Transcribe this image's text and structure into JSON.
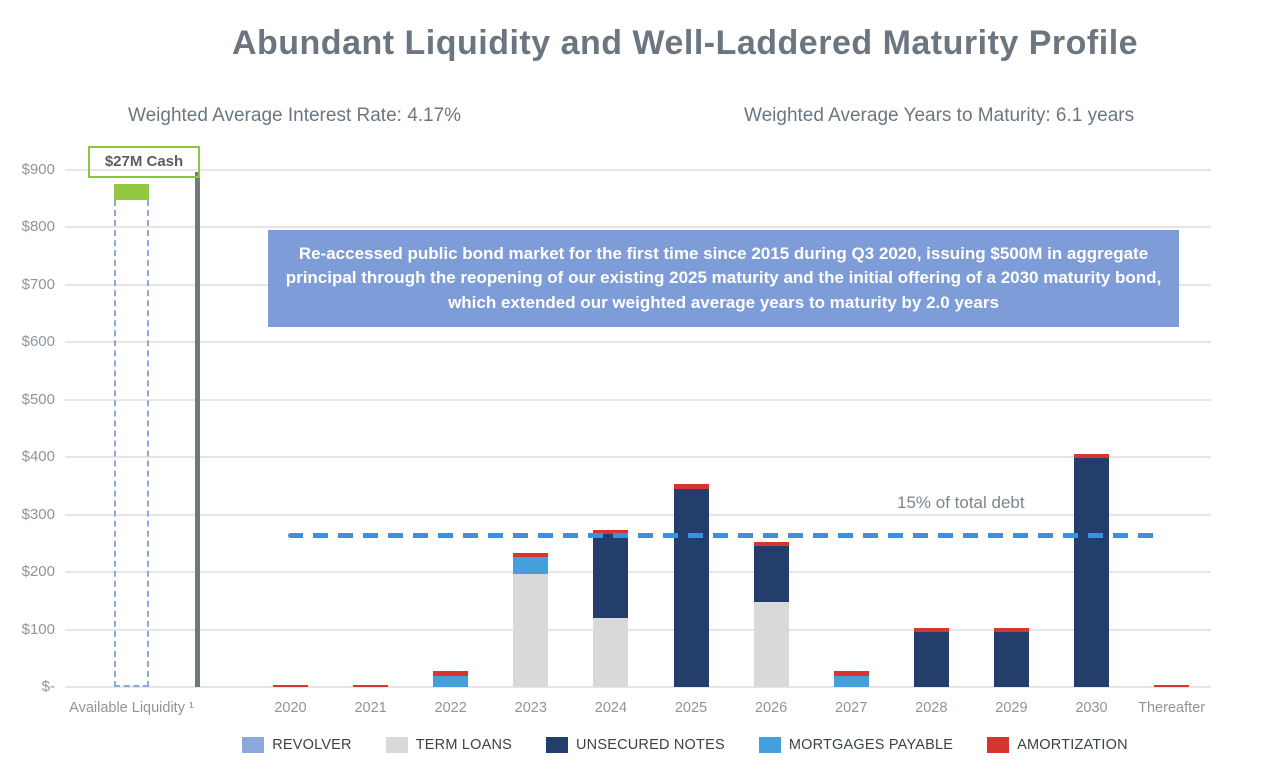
{
  "title": "Abundant Liquidity and Well-Laddered Maturity Profile",
  "stats": {
    "left": "Weighted Average Interest Rate: 4.17%",
    "right": "Weighted Average Years to Maturity: 6.1 years"
  },
  "annotations": {
    "cash_callout": "$27M Cash",
    "bond_note": "Re-accessed public bond market for the first time since 2015 during Q3 2020, issuing $500M in aggregate principal through the reopening of our existing 2025 maturity and the initial offering of a 2030 maturity bond, which extended our weighted average years to maturity by 2.0 years"
  },
  "chart_data": {
    "type": "bar",
    "stacked": true,
    "title": "Debt maturity ladder with available liquidity ($M)",
    "xlabel": "",
    "ylabel": "$M",
    "ylim": [
      0,
      900
    ],
    "ytick_interval": 100,
    "ytick_labels": [
      "$-",
      "$100",
      "$200",
      "$300",
      "$400",
      "$500",
      "$600",
      "$700",
      "$800",
      "$900"
    ],
    "grid": true,
    "legend_position": "bottom",
    "categories": [
      "Available Liquidity ¹",
      "2020",
      "2021",
      "2022",
      "2023",
      "2024",
      "2025",
      "2026",
      "2027",
      "2028",
      "2029",
      "2030",
      "Thereafter"
    ],
    "series": [
      {
        "name": "REVOLVER",
        "color": "#8da9dc",
        "style": "dashed-outline",
        "in_legend": true,
        "values": [
          848,
          0,
          0,
          0,
          0,
          0,
          0,
          0,
          0,
          0,
          0,
          0,
          0
        ]
      },
      {
        "name": "TERM LOANS",
        "color": "#d9d9d9",
        "in_legend": true,
        "values": [
          0,
          0,
          0,
          0,
          197,
          120,
          0,
          148,
          0,
          0,
          0,
          0,
          0
        ]
      },
      {
        "name": "UNSECURED NOTES",
        "color": "#233e6a",
        "in_legend": true,
        "values": [
          0,
          0,
          0,
          0,
          0,
          147,
          345,
          97,
          0,
          96,
          96,
          398,
          0
        ]
      },
      {
        "name": "MORTGAGES PAYABLE",
        "color": "#449fdc",
        "in_legend": true,
        "values": [
          0,
          0,
          0,
          19,
          30,
          0,
          0,
          0,
          20,
          0,
          0,
          0,
          0
        ]
      },
      {
        "name": "CASH",
        "color": "#92c841",
        "in_legend": false,
        "values": [
          27,
          0,
          0,
          0,
          0,
          0,
          0,
          0,
          0,
          0,
          0,
          0,
          0
        ]
      },
      {
        "name": "AMORTIZATION",
        "color": "#d63530",
        "in_legend": true,
        "values": [
          0,
          3,
          3,
          9,
          6,
          7,
          8,
          8,
          8,
          6,
          6,
          7,
          3
        ]
      }
    ],
    "threshold_line": {
      "value": 265,
      "label": "15% of total debt",
      "color": "#3f8ee0"
    }
  }
}
